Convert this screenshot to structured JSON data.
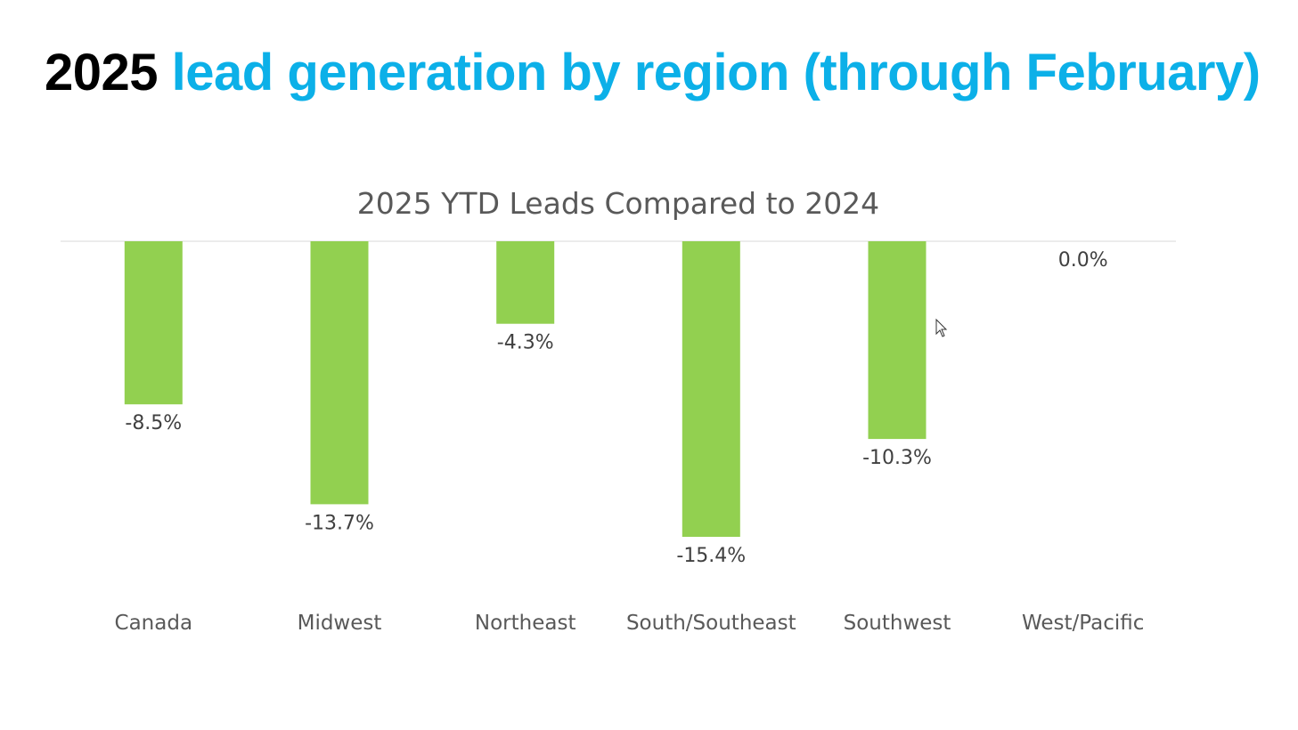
{
  "slide": {
    "title_year": "2025",
    "title_rest": "lead generation by region (through February)"
  },
  "chart_data": {
    "type": "bar",
    "title": "2025 YTD Leads Compared to 2024",
    "categories": [
      "Canada",
      "Midwest",
      "Northeast",
      "South/Southeast",
      "Southwest",
      "West/Pacific"
    ],
    "values": [
      -8.5,
      -13.7,
      -4.3,
      -15.4,
      -10.3,
      0.0
    ],
    "data_labels": [
      "-8.5%",
      "-13.7%",
      "-4.3%",
      "-15.4%",
      "-10.3%",
      "0.0%"
    ],
    "xlabel": "",
    "ylabel": "",
    "ylim": [
      -15.4,
      0
    ],
    "grid": false,
    "legend": "none",
    "bar_color": "#92d050",
    "axis_color": "#d9d9d9"
  }
}
